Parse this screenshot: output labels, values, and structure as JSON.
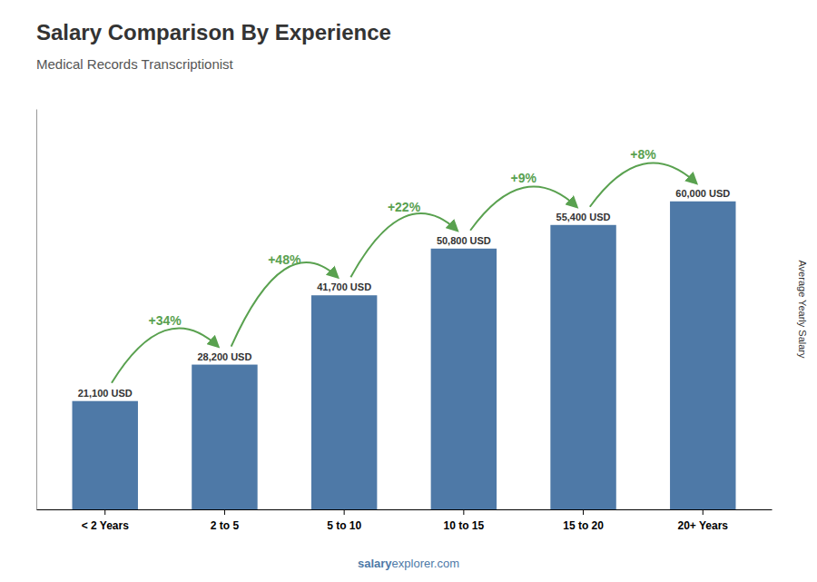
{
  "chart_data": {
    "type": "bar",
    "title": "Salary Comparison By Experience",
    "subtitle": "Medical Records Transcriptionist",
    "categories": [
      "< 2 Years",
      "2 to 5",
      "5 to 10",
      "10 to 15",
      "15 to 20",
      "20+ Years"
    ],
    "values": [
      21100,
      28200,
      41700,
      50800,
      55400,
      60000
    ],
    "value_labels": [
      "21,100 USD",
      "28,200 USD",
      "41,700 USD",
      "50,800 USD",
      "55,400 USD",
      "60,000 USD"
    ],
    "data_labels": true,
    "annotations": [
      "+34%",
      "+48%",
      "+22%",
      "+9%",
      "+8%"
    ],
    "ylabel": "Average Yearly Salary",
    "footer": [
      "salary",
      "explorer.com"
    ],
    "ylim": [
      0,
      78000
    ],
    "tick_labels": "x",
    "grid": false
  }
}
